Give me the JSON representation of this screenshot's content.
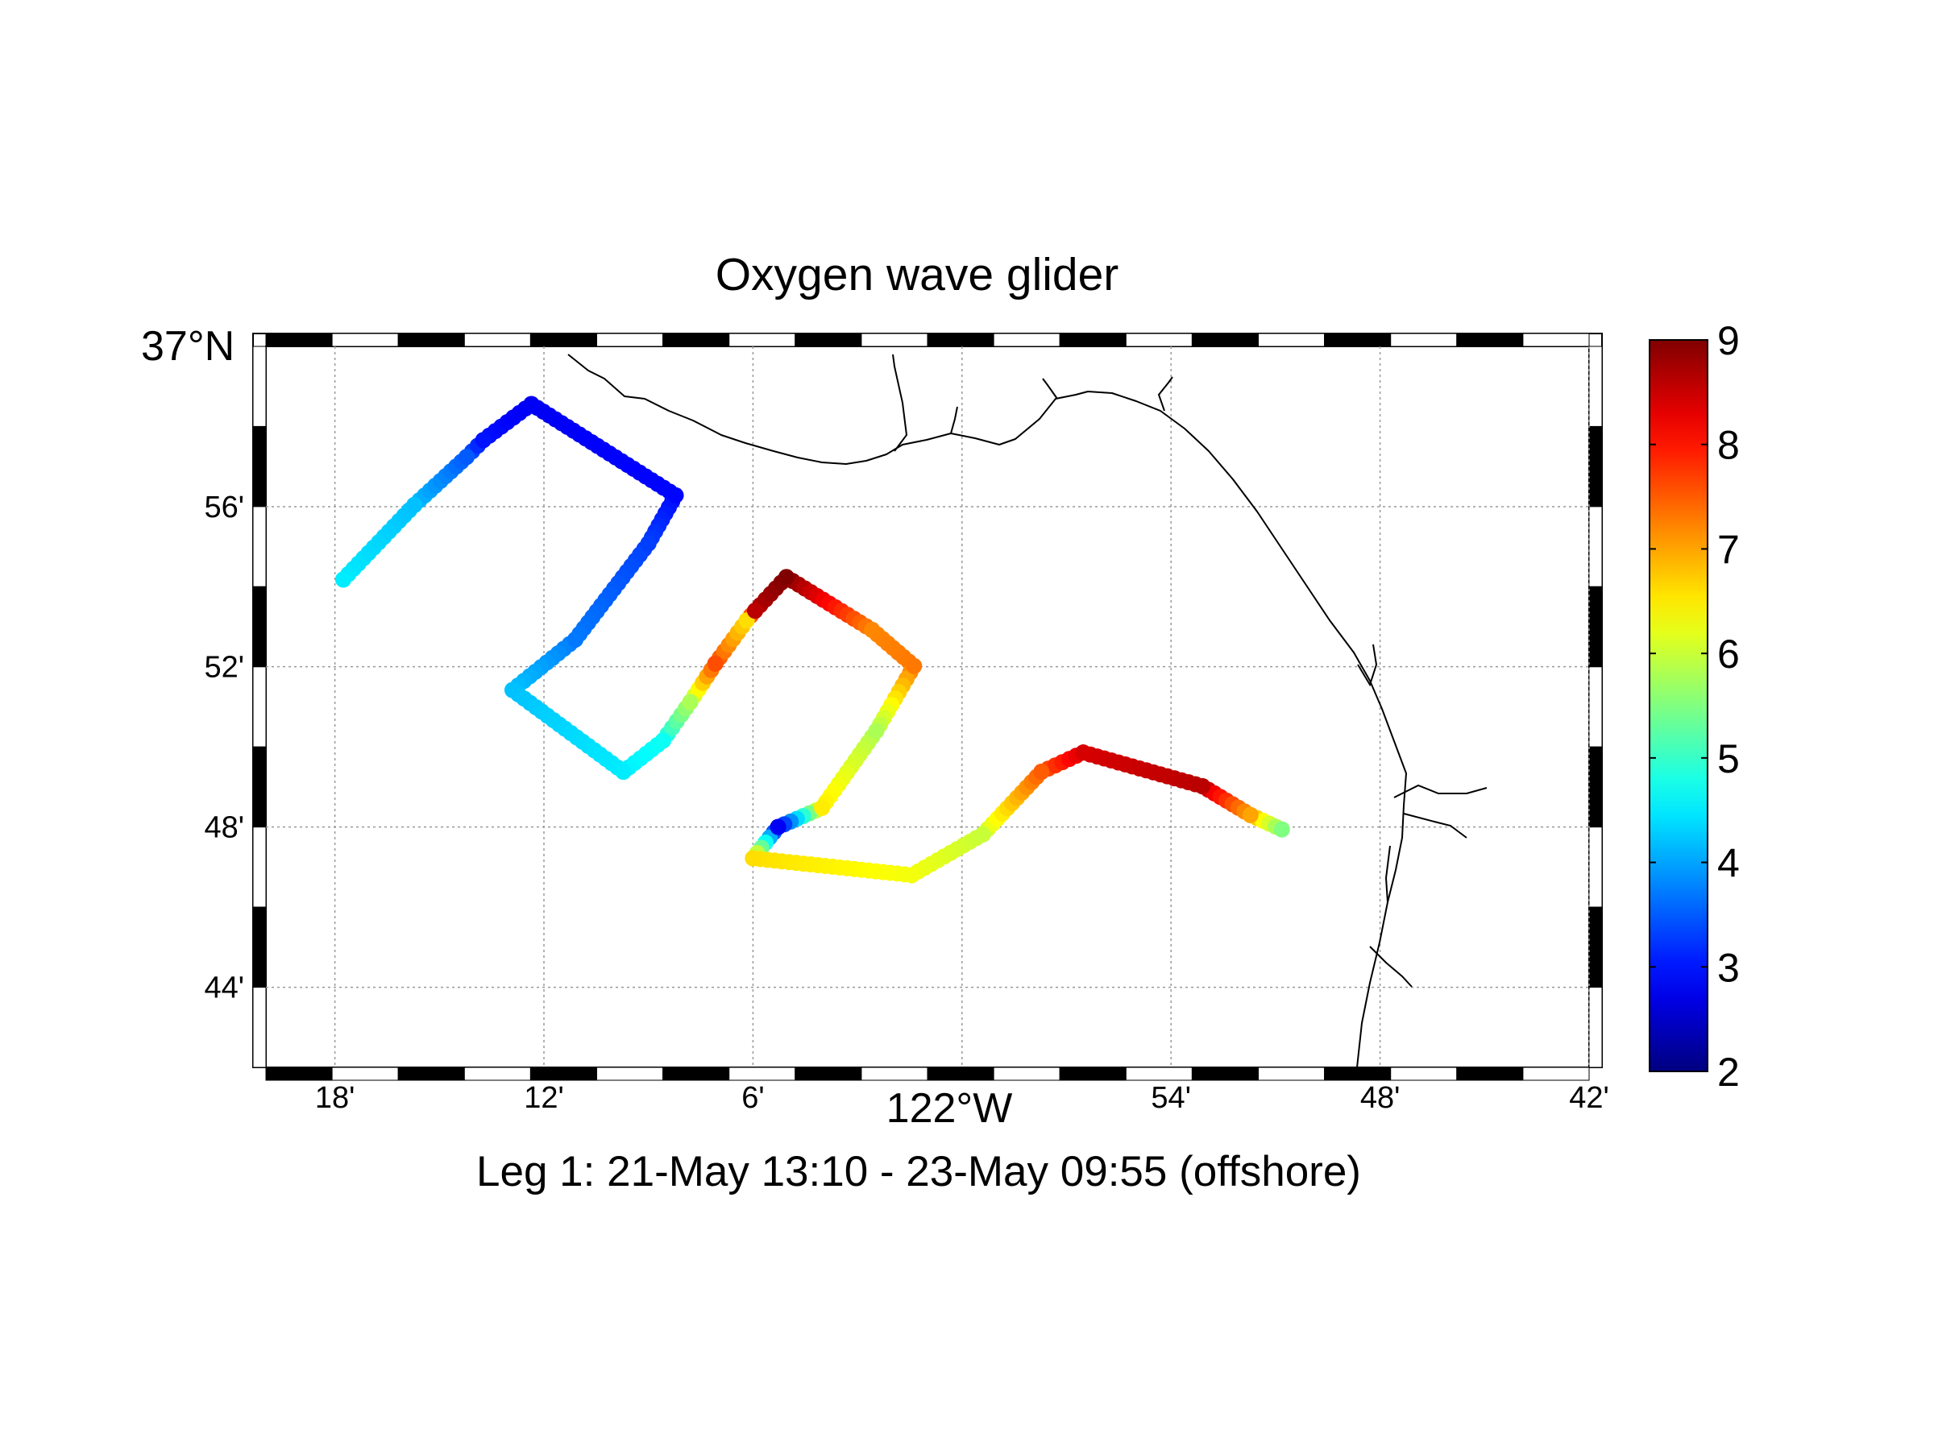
{
  "title": "Oxygen wave glider",
  "caption": "Leg 1: 21-May 13:10 - 23-May 09:55 (offshore)",
  "map": {
    "lon_range_deg": [
      -122.333,
      -121.7
    ],
    "lat_range_deg": [
      36.7,
      37.0
    ],
    "lat_label": "37°N",
    "lon_label": "122°W",
    "x_ticks": [
      {
        "lon": -122.3,
        "label": "18'"
      },
      {
        "lon": -122.2,
        "label": "12'"
      },
      {
        "lon": -122.1,
        "label": "6'"
      },
      {
        "lon": -121.9,
        "label": "54'"
      },
      {
        "lon": -121.8,
        "label": "48'"
      },
      {
        "lon": -121.7,
        "label": "42'"
      }
    ],
    "y_ticks": [
      {
        "lat": 36.9333,
        "label": "56'"
      },
      {
        "lat": 36.8667,
        "label": "52'"
      },
      {
        "lat": 36.8,
        "label": "48'"
      },
      {
        "lat": 36.7333,
        "label": "44'"
      }
    ],
    "grid": true
  },
  "colorbar": {
    "colormap": "jet",
    "min": 2,
    "max": 9,
    "tick_labels": [
      "2",
      "3",
      "4",
      "5",
      "6",
      "7",
      "8",
      "9"
    ]
  },
  "chart_data": {
    "type": "scatter",
    "x_unit": "degrees longitude",
    "y_unit": "degrees latitude",
    "color_unit": "oxygen",
    "points": [
      {
        "lon": -122.296,
        "lat": 36.903,
        "value": 4.5
      },
      {
        "lon": -122.262,
        "lat": 36.934,
        "value": 4.2
      },
      {
        "lon": -122.237,
        "lat": 36.954,
        "value": 3.5
      },
      {
        "lon": -122.229,
        "lat": 36.961,
        "value": 3.0
      },
      {
        "lon": -122.206,
        "lat": 36.976,
        "value": 2.8
      },
      {
        "lon": -122.137,
        "lat": 36.938,
        "value": 2.9
      },
      {
        "lon": -122.15,
        "lat": 36.918,
        "value": 3.3
      },
      {
        "lon": -122.185,
        "lat": 36.878,
        "value": 3.7
      },
      {
        "lon": -122.215,
        "lat": 36.857,
        "value": 4.2
      },
      {
        "lon": -122.162,
        "lat": 36.823,
        "value": 4.5
      },
      {
        "lon": -122.143,
        "lat": 36.836,
        "value": 4.7
      },
      {
        "lon": -122.13,
        "lat": 36.852,
        "value": 5.8
      },
      {
        "lon": -122.118,
        "lat": 36.868,
        "value": 7.6
      },
      {
        "lon": -122.103,
        "lat": 36.886,
        "value": 6.6
      },
      {
        "lon": -122.099,
        "lat": 36.89,
        "value": 8.6
      },
      {
        "lon": -122.084,
        "lat": 36.904,
        "value": 9.0
      },
      {
        "lon": -122.043,
        "lat": 36.882,
        "value": 7.2
      },
      {
        "lon": -122.023,
        "lat": 36.867,
        "value": 7.3
      },
      {
        "lon": -122.041,
        "lat": 36.84,
        "value": 5.8
      },
      {
        "lon": -122.067,
        "lat": 36.808,
        "value": 6.5
      },
      {
        "lon": -122.088,
        "lat": 36.8,
        "value": 2.8
      },
      {
        "lon": -122.1,
        "lat": 36.787,
        "value": 6.6
      },
      {
        "lon": -122.024,
        "lat": 36.78,
        "value": 6.3
      },
      {
        "lon": -121.99,
        "lat": 36.797,
        "value": 6.0
      },
      {
        "lon": -121.962,
        "lat": 36.823,
        "value": 7.5
      },
      {
        "lon": -121.942,
        "lat": 36.831,
        "value": 8.4
      },
      {
        "lon": -121.885,
        "lat": 36.817,
        "value": 8.6
      },
      {
        "lon": -121.862,
        "lat": 36.805,
        "value": 7.0
      },
      {
        "lon": -121.847,
        "lat": 36.799,
        "value": 5.5
      }
    ]
  }
}
